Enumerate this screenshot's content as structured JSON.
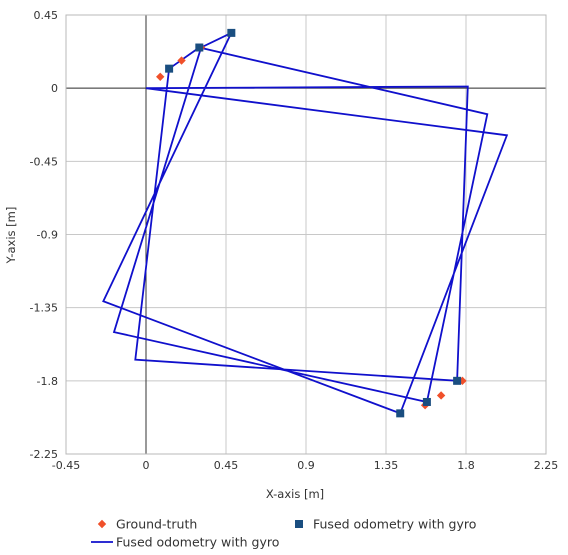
{
  "chart_data": {
    "type": "scatter",
    "xlabel": "X-axis [m]",
    "ylabel": "Y-axis [m]",
    "xlim": [
      -0.45,
      2.25
    ],
    "ylim": [
      -2.25,
      0.45
    ],
    "xticks": [
      "-0.45",
      "0",
      "0.45",
      "0.9",
      "1.35",
      "1.8",
      "2.25"
    ],
    "yticks": [
      "0.45",
      "0",
      "-0.45",
      "-0.9",
      "-1.35",
      "-1.8",
      "-2.25"
    ],
    "grid": true,
    "legend_position": "bottom",
    "series": [
      {
        "name": "Ground-truth",
        "mark": "diamond",
        "color": "#f0502a",
        "points": [
          [
            0.08,
            0.07
          ],
          [
            0.2,
            0.17
          ],
          [
            0.31,
            0.25
          ],
          [
            1.57,
            -1.95
          ],
          [
            1.66,
            -1.89
          ],
          [
            1.78,
            -1.8
          ]
        ]
      },
      {
        "name": "Fused odometry with gyro",
        "mark": "square",
        "color": "#1a4e80",
        "points": [
          [
            0.13,
            0.12
          ],
          [
            0.3,
            0.25
          ],
          [
            0.48,
            0.34
          ],
          [
            1.43,
            -2.0
          ],
          [
            1.58,
            -1.93
          ],
          [
            1.75,
            -1.8
          ]
        ]
      },
      {
        "name": "Fused odometry with gyro",
        "mark": "line",
        "color": "#1010cc",
        "points": [
          [
            0.0,
            0.0
          ],
          [
            1.81,
            0.01
          ],
          [
            1.75,
            -1.8
          ],
          [
            -0.06,
            -1.67
          ],
          [
            0.13,
            0.12
          ],
          [
            0.3,
            0.25
          ],
          [
            1.92,
            -0.16
          ],
          [
            1.58,
            -1.93
          ],
          [
            -0.18,
            -1.5
          ],
          [
            0.31,
            0.25
          ],
          [
            0.48,
            0.34
          ],
          [
            -0.24,
            -1.31
          ],
          [
            1.43,
            -2.0
          ],
          [
            2.03,
            -0.29
          ],
          [
            0.0,
            0.0
          ]
        ]
      }
    ]
  }
}
